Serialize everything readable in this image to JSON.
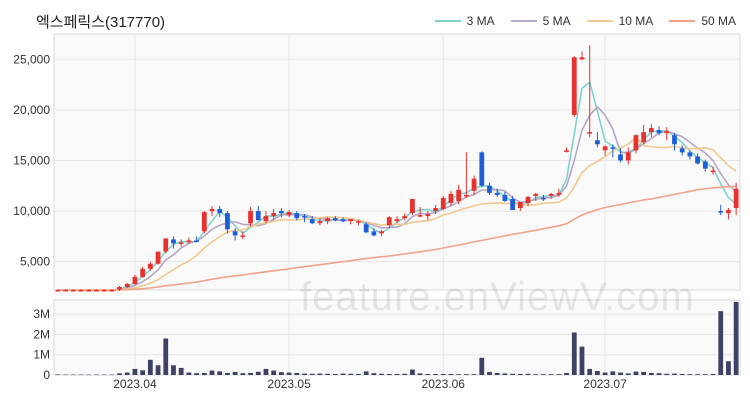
{
  "chart_data": {
    "type": "candlestick",
    "title": "엑스페릭스(317770)",
    "x_ticks": [
      "2023.04",
      "2023.05",
      "2023.06",
      "2023.07"
    ],
    "y_ticks": [
      "25,000",
      "20,000",
      "15,000",
      "10,000",
      "5,000"
    ],
    "y_tick_values": [
      25000,
      20000,
      15000,
      10000,
      5000
    ],
    "ylim": [
      2200,
      27500
    ],
    "volume_ticks": [
      "3M",
      "2M",
      "1M",
      "0"
    ],
    "volume_tick_values": [
      3000000,
      2000000,
      1000000,
      0
    ],
    "volume_ylim": [
      0,
      3700000
    ],
    "legend": [
      {
        "name": "3 MA",
        "color": "#7fd3cf"
      },
      {
        "name": "5 MA",
        "color": "#b7a6c4"
      },
      {
        "name": "10 MA",
        "color": "#f1c98f"
      },
      {
        "name": "50 MA",
        "color": "#f2a18a"
      }
    ],
    "colors": {
      "up": "#e8322f",
      "down": "#1e5fd8",
      "volume": "#3d4164",
      "grid": "#e6e6e6"
    },
    "grid": true,
    "legend_position": "top-right",
    "dates": [
      "2023-03-20",
      "2023-03-21",
      "2023-03-22",
      "2023-03-23",
      "2023-03-24",
      "2023-03-27",
      "2023-03-28",
      "2023-03-29",
      "2023-03-30",
      "2023-03-31",
      "2023-04-03",
      "2023-04-04",
      "2023-04-05",
      "2023-04-06",
      "2023-04-07",
      "2023-04-10",
      "2023-04-11",
      "2023-04-12",
      "2023-04-13",
      "2023-04-14",
      "2023-04-17",
      "2023-04-18",
      "2023-04-19",
      "2023-04-20",
      "2023-04-21",
      "2023-04-24",
      "2023-04-25",
      "2023-04-26",
      "2023-04-27",
      "2023-04-28",
      "2023-05-02",
      "2023-05-03",
      "2023-05-04",
      "2023-05-08",
      "2023-05-09",
      "2023-05-10",
      "2023-05-11",
      "2023-05-12",
      "2023-05-15",
      "2023-05-16",
      "2023-05-17",
      "2023-05-18",
      "2023-05-19",
      "2023-05-22",
      "2023-05-23",
      "2023-05-24",
      "2023-05-25",
      "2023-05-26",
      "2023-05-30",
      "2023-05-31",
      "2023-06-01",
      "2023-06-02",
      "2023-06-05",
      "2023-06-07",
      "2023-06-08",
      "2023-06-09",
      "2023-06-12",
      "2023-06-13",
      "2023-06-14",
      "2023-06-15",
      "2023-06-16",
      "2023-06-19",
      "2023-06-20",
      "2023-06-21",
      "2023-06-22",
      "2023-06-23",
      "2023-06-26",
      "2023-06-27",
      "2023-06-28",
      "2023-06-29",
      "2023-06-30",
      "2023-07-03",
      "2023-07-04",
      "2023-07-05",
      "2023-07-06",
      "2023-07-07",
      "2023-07-10",
      "2023-07-11",
      "2023-07-12",
      "2023-07-13",
      "2023-07-14",
      "2023-07-17",
      "2023-07-18",
      "2023-07-19",
      "2023-07-20",
      "2023-07-21",
      "2023-07-24",
      "2023-07-25",
      "2023-07-26"
    ],
    "open": [
      2200,
      2200,
      2200,
      2200,
      2200,
      2200,
      2200,
      2200,
      2250,
      2500,
      2800,
      3500,
      4300,
      4800,
      6000,
      7200,
      6800,
      7000,
      7100,
      8000,
      10000,
      10200,
      9800,
      8000,
      7500,
      8800,
      10000,
      9000,
      9500,
      10000,
      9600,
      9800,
      9500,
      9200,
      8800,
      9000,
      9300,
      9200,
      9000,
      8900,
      8700,
      8000,
      7800,
      8600,
      9000,
      9300,
      9800,
      9600,
      9500,
      10000,
      10200,
      10800,
      11000,
      11600,
      12000,
      15800,
      12500,
      11800,
      11600,
      11200,
      10300,
      10800,
      11500,
      11300,
      11500,
      11600,
      16000,
      19500,
      25000,
      17800,
      17000,
      16000,
      16300,
      15600,
      15000,
      16000,
      16800,
      17800,
      18000,
      17700,
      17500,
      16200,
      15800,
      15400,
      14900,
      14000,
      10000,
      9800,
      10300
    ],
    "high": [
      2300,
      2300,
      2300,
      2300,
      2300,
      2300,
      2300,
      2300,
      2600,
      2900,
      3700,
      4500,
      5000,
      6000,
      7300,
      7500,
      7200,
      7400,
      7500,
      10000,
      10500,
      10500,
      10000,
      8300,
      8000,
      10400,
      10500,
      10000,
      10200,
      10300,
      10100,
      10000,
      9700,
      9500,
      9300,
      9400,
      9500,
      9400,
      9200,
      9100,
      8900,
      8300,
      8100,
      9500,
      9500,
      9800,
      11200,
      10400,
      10000,
      10600,
      11500,
      12000,
      12600,
      15800,
      13500,
      15900,
      12800,
      12200,
      11900,
      11500,
      10900,
      11500,
      11800,
      11600,
      11800,
      12200,
      16300,
      25300,
      25800,
      26400,
      17800,
      16500,
      16600,
      16200,
      16300,
      17600,
      18500,
      18600,
      18400,
      18300,
      17700,
      16500,
      16000,
      15700,
      15100,
      14400,
      10600,
      10300,
      12800
    ],
    "low": [
      2100,
      2100,
      2100,
      2100,
      2100,
      2100,
      2100,
      2100,
      2100,
      2400,
      2700,
      3400,
      4100,
      4700,
      5800,
      6300,
      6500,
      6800,
      6900,
      7800,
      9500,
      9400,
      7800,
      7100,
      7200,
      8500,
      9100,
      8800,
      9100,
      9400,
      9400,
      9100,
      8900,
      8700,
      8600,
      8700,
      9000,
      8900,
      8700,
      8600,
      7800,
      7500,
      7500,
      8300,
      8800,
      9100,
      9600,
      9400,
      9100,
      9700,
      10100,
      10500,
      10700,
      11300,
      11600,
      12400,
      11600,
      11400,
      10900,
      10100,
      10000,
      10500,
      11000,
      11000,
      11200,
      11400,
      15800,
      19300,
      24900,
      17300,
      16300,
      15500,
      15300,
      14800,
      14600,
      15700,
      16600,
      17300,
      17500,
      17000,
      16000,
      15500,
      15100,
      14600,
      13900,
      13600,
      9600,
      9200,
      9600
    ],
    "close": [
      2200,
      2200,
      2200,
      2200,
      2200,
      2200,
      2200,
      2200,
      2500,
      2800,
      3500,
      4300,
      4800,
      6000,
      7300,
      6800,
      6900,
      7100,
      7000,
      9900,
      10200,
      9800,
      8200,
      7600,
      7600,
      10000,
      9100,
      9500,
      9800,
      9800,
      9900,
      9300,
      9400,
      8800,
      9000,
      9300,
      9100,
      9000,
      9200,
      9000,
      7900,
      7600,
      8000,
      9400,
      9200,
      9500,
      11200,
      9600,
      9700,
      10300,
      11300,
      11700,
      12100,
      11600,
      13200,
      12500,
      11800,
      11600,
      11000,
      10100,
      10900,
      11400,
      11700,
      11200,
      11700,
      11800,
      16000,
      25200,
      25200,
      17800,
      16600,
      16400,
      16200,
      15000,
      15800,
      17500,
      17800,
      18200,
      17700,
      17900,
      16600,
      15800,
      15400,
      14700,
      14200,
      14000,
      9900,
      10100,
      12200
    ],
    "volume": [
      30000,
      20000,
      20000,
      20000,
      20000,
      20000,
      20000,
      20000,
      80000,
      120000,
      300000,
      230000,
      750000,
      480000,
      1800000,
      480000,
      350000,
      120000,
      90000,
      100000,
      220000,
      180000,
      100000,
      150000,
      90000,
      100000,
      160000,
      300000,
      220000,
      140000,
      120000,
      100000,
      70000,
      60000,
      70000,
      60000,
      50000,
      70000,
      60000,
      50000,
      180000,
      90000,
      60000,
      50000,
      50000,
      60000,
      270000,
      80000,
      50000,
      50000,
      50000,
      50000,
      40000,
      40000,
      40000,
      850000,
      150000,
      100000,
      80000,
      60000,
      50000,
      60000,
      40000,
      40000,
      40000,
      40000,
      100000,
      2100000,
      1400000,
      300000,
      200000,
      120000,
      180000,
      120000,
      80000,
      170000,
      150000,
      100000,
      90000,
      60000,
      70000,
      50000,
      40000,
      40000,
      40000,
      50000,
      3150000,
      680000,
      3600000
    ],
    "ma3": [
      2200,
      2200,
      2200,
      2200,
      2200,
      2200,
      2200,
      2200,
      2300,
      2500,
      2930,
      3530,
      4200,
      5030,
      6030,
      6700,
      7000,
      6930,
      7000,
      8000,
      9030,
      9970,
      9400,
      8530,
      7800,
      8400,
      8900,
      9530,
      9470,
      9700,
      9830,
      9670,
      9530,
      9170,
      9070,
      9030,
      9130,
      9130,
      9100,
      9070,
      8700,
      8170,
      7830,
      8330,
      8870,
      9370,
      9970,
      10100,
      10170,
      9870,
      10430,
      11100,
      11700,
      11800,
      12300,
      12430,
      12500,
      11970,
      11470,
      10900,
      10670,
      10800,
      11330,
      11430,
      11530,
      11570,
      13170,
      17670,
      22130,
      22730,
      19870,
      16930,
      16400,
      15870,
      15670,
      16100,
      17030,
      17830,
      17900,
      17930,
      17400,
      16770,
      15930,
      15300,
      14770,
      14300,
      12700,
      11330,
      10730
    ],
    "ma5": [
      2200,
      2200,
      2200,
      2200,
      2200,
      2200,
      2200,
      2200,
      2260,
      2380,
      2640,
      3020,
      3520,
      4200,
      5180,
      5680,
      6360,
      6820,
      7020,
      7540,
      8200,
      8600,
      8820,
      8940,
      8680,
      8640,
      8540,
      8760,
      9200,
      9640,
      9620,
      9660,
      9640,
      9400,
      9280,
      9160,
      9120,
      9040,
      9120,
      9120,
      8840,
      8580,
      8340,
      8380,
      8420,
      8740,
      9460,
      9780,
      9720,
      9860,
      10220,
      10520,
      10960,
      11400,
      11640,
      12080,
      12080,
      12120,
      12000,
      11300,
      10880,
      10960,
      11140,
      11300,
      11340,
      11560,
      12480,
      15020,
      18000,
      19480,
      20320,
      19460,
      18100,
      15800,
      15800,
      16180,
      16640,
      17160,
      17760,
      17840,
      17660,
      17340,
      16800,
      16220,
      15740,
      15000,
      13700,
      12600,
      11900
    ],
    "ma10": [
      2200,
      2200,
      2200,
      2200,
      2200,
      2200,
      2200,
      2200,
      2230,
      2290,
      2420,
      2610,
      2860,
      3240,
      3750,
      4220,
      4690,
      5070,
      5610,
      6360,
      6950,
      7480,
      7920,
      8080,
      8150,
      8490,
      8730,
      8830,
      8980,
      9150,
      9130,
      9130,
      9210,
      9280,
      9340,
      9430,
      9380,
      9350,
      9260,
      9120,
      8920,
      8750,
      8610,
      8690,
      8690,
      8680,
      8890,
      8990,
      9040,
      9260,
      9610,
      9800,
      10100,
      10300,
      10510,
      10700,
      10770,
      10790,
      10780,
      10720,
      10640,
      10560,
      10640,
      10780,
      10820,
      10880,
      11300,
      12400,
      13810,
      14500,
      14890,
      15380,
      15970,
      16210,
      16620,
      17300,
      16460,
      16350,
      16280,
      16290,
      16400,
      16240,
      16160,
      16160,
      16260,
      16050,
      15260,
      14490,
      13920
    ],
    "ma50": [
      2200,
      2200,
      2200,
      2200,
      2200,
      2200,
      2200,
      2200,
      2210,
      2230,
      2280,
      2330,
      2400,
      2500,
      2620,
      2700,
      2800,
      2890,
      2980,
      3120,
      3270,
      3400,
      3500,
      3600,
      3680,
      3800,
      3900,
      4000,
      4100,
      4200,
      4300,
      4400,
      4500,
      4600,
      4700,
      4800,
      4900,
      5000,
      5100,
      5200,
      5300,
      5400,
      5480,
      5560,
      5660,
      5760,
      5880,
      5980,
      6080,
      6200,
      6350,
      6500,
      6650,
      6800,
      6950,
      7100,
      7250,
      7400,
      7550,
      7700,
      7830,
      7970,
      8100,
      8250,
      8400,
      8550,
      8750,
      9200,
      9600,
      9900,
      10150,
      10350,
      10500,
      10650,
      10800,
      10950,
      11100,
      11200,
      11350,
      11500,
      11650,
      11800,
      11950,
      12100,
      12200,
      12300,
      12350,
      12400,
      12450
    ]
  }
}
